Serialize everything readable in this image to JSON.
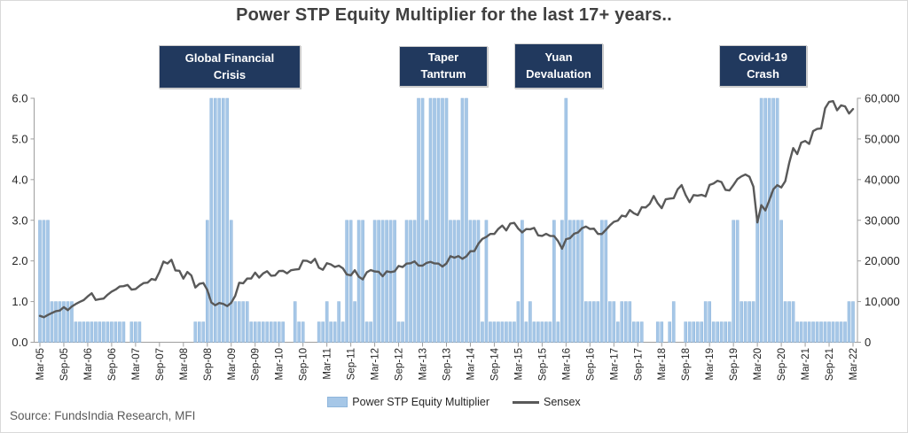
{
  "annotations": [
    {
      "line1": "Global Financial",
      "line2": "Crisis"
    },
    {
      "line1": "Taper",
      "line2": "Tantrum"
    },
    {
      "line1": "Yuan",
      "line2": "Devaluation"
    },
    {
      "line1": "Covid-19",
      "line2": "Crash"
    }
  ],
  "legend": {
    "items": [
      {
        "label": "Power STP Equity Multiplier",
        "type": "bar"
      },
      {
        "label": "Sensex",
        "type": "line"
      }
    ]
  },
  "footer": {
    "source": "Source: FundsIndia Research, MFI"
  },
  "chart_data": {
    "type": "bar+line",
    "title": "Power STP Equity Multiplier for the last 17+ years..",
    "x_start": "Mar-05",
    "x_end": "Mar-22",
    "x_freq": "monthly",
    "x_count": 205,
    "grid": false,
    "legend_position": "bottom-center",
    "x_tick_labels": [
      "Mar-05",
      "Sep-05",
      "Mar-06",
      "Sep-06",
      "Mar-07",
      "Sep-07",
      "Mar-08",
      "Sep-08",
      "Mar-09",
      "Sep-09",
      "Mar-10",
      "Sep-10",
      "Mar-11",
      "Sep-11",
      "Mar-12",
      "Sep-12",
      "Mar-13",
      "Sep-13",
      "Mar-14",
      "Sep-14",
      "Mar-15",
      "Sep-15",
      "Mar-16",
      "Sep-16",
      "Mar-17",
      "Sep-17",
      "Mar-18",
      "Sep-18",
      "Mar-19",
      "Sep-19",
      "Mar-20",
      "Sep-20",
      "Mar-21",
      "Sep-21",
      "Mar-22"
    ],
    "y_left": {
      "ticks": [
        "0.0",
        "1.0",
        "2.0",
        "3.0",
        "4.0",
        "5.0",
        "6.0"
      ],
      "lim": [
        0,
        6
      ]
    },
    "y_right": {
      "ticks": [
        "0",
        "10,000",
        "20,000",
        "30,000",
        "40,000",
        "50,000",
        "60,000"
      ],
      "lim": [
        0,
        60000
      ]
    },
    "series": [
      {
        "name": "Power STP Equity Multiplier",
        "type": "bar",
        "axis": "left",
        "color": "#A6C7E7",
        "edge_color": "#8FB6DC",
        "values": [
          3,
          3,
          3,
          1,
          1,
          1,
          1,
          1,
          1,
          0.5,
          0.5,
          0.5,
          0.5,
          0.5,
          0.5,
          0.5,
          0.5,
          0.5,
          0.5,
          0.5,
          0.5,
          0.5,
          0,
          0.5,
          0.5,
          0.5,
          0,
          0,
          0,
          0,
          0,
          0,
          0,
          0,
          0,
          0,
          0,
          0,
          0,
          0.5,
          0.5,
          0.5,
          3,
          6,
          6,
          6,
          6,
          6,
          3,
          1,
          1,
          1,
          1,
          0.5,
          0.5,
          0.5,
          0.5,
          0.5,
          0.5,
          0.5,
          0.5,
          0.5,
          0,
          0,
          1,
          0.5,
          0.5,
          0,
          0,
          0,
          0.5,
          0.5,
          1,
          0.5,
          0.5,
          1,
          0.5,
          3,
          3,
          1,
          3,
          3,
          0.5,
          0.5,
          3,
          3,
          3,
          3,
          3,
          3,
          0.5,
          0.5,
          3,
          3,
          3,
          6,
          6,
          3,
          6,
          6,
          6,
          6,
          6,
          3,
          3,
          3,
          6,
          6,
          3,
          3,
          3,
          0.5,
          3,
          0.5,
          0.5,
          0.5,
          0.5,
          0.5,
          0.5,
          0.5,
          1,
          3,
          0.5,
          1,
          0.5,
          0.5,
          0.5,
          0.5,
          0.5,
          3,
          0.5,
          3,
          6,
          3,
          3,
          3,
          3,
          1,
          1,
          1,
          1,
          3,
          3,
          1,
          1,
          0.5,
          1,
          1,
          1,
          0.5,
          0.5,
          0.5,
          0,
          0,
          0,
          0.5,
          0.5,
          0,
          0.5,
          1,
          0,
          0,
          0.5,
          0.5,
          0.5,
          0.5,
          0.5,
          1,
          1,
          0.5,
          0.5,
          0.5,
          0.5,
          0.5,
          3,
          3,
          1,
          1,
          1,
          1,
          3,
          6,
          6,
          6,
          6,
          6,
          3,
          1,
          1,
          1,
          0.5,
          0.5,
          0.5,
          0.5,
          0.5,
          0.5,
          0.5,
          0.5,
          0.5,
          0.5,
          0.5,
          0.5,
          0.5,
          1,
          1
        ]
      },
      {
        "name": "Sensex",
        "type": "line",
        "axis": "right",
        "color": "#595959",
        "values": [
          6493,
          6154,
          6715,
          7194,
          7635,
          7805,
          8634,
          7892,
          8789,
          9398,
          9920,
          10370,
          11280,
          12043,
          10399,
          10609,
          10744,
          11699,
          12454,
          12962,
          13696,
          13787,
          14091,
          12938,
          13072,
          13872,
          14544,
          14651,
          15551,
          15319,
          17291,
          19838,
          19363,
          20287,
          17649,
          17579,
          15644,
          17287,
          16416,
          13462,
          14356,
          14565,
          12860,
          9788,
          9093,
          9647,
          9424,
          8892,
          9709,
          11403,
          14625,
          14494,
          15670,
          15667,
          17127,
          15896,
          16926,
          17465,
          16358,
          16430,
          17528,
          17559,
          16945,
          17701,
          17868,
          17971,
          20069,
          20032,
          19521,
          20509,
          18328,
          17823,
          19445,
          19136,
          18503,
          18846,
          18197,
          16677,
          16454,
          17705,
          16123,
          15455,
          17194,
          17753,
          17404,
          17319,
          16219,
          17430,
          17236,
          17429,
          18763,
          18505,
          19340,
          19427,
          19895,
          18862,
          18836,
          19504,
          19760,
          19396,
          19346,
          18620,
          19380,
          21165,
          20792,
          21171,
          20514,
          21120,
          22386,
          22418,
          24217,
          25414,
          25895,
          26638,
          26631,
          27866,
          28694,
          27499,
          29183,
          29362,
          27957,
          27011,
          27828,
          27781,
          28115,
          26283,
          26155,
          26657,
          26146,
          26118,
          24871,
          23002,
          25342,
          25607,
          26668,
          26999,
          28052,
          28452,
          27866,
          27930,
          26653,
          26626,
          27656,
          28743,
          29621,
          29918,
          31146,
          30922,
          32515,
          31730,
          31284,
          33213,
          33149,
          34057,
          35965,
          34184,
          32969,
          35160,
          35322,
          35423,
          37607,
          38645,
          36227,
          34442,
          36194,
          36068,
          36257,
          35867,
          38673,
          39032,
          39714,
          39395,
          37481,
          37333,
          38667,
          40129,
          40794,
          41254,
          40723,
          38297,
          29468,
          33718,
          32424,
          34916,
          37607,
          38628,
          38068,
          39614,
          44150,
          47751,
          46286,
          49100,
          49509,
          48782,
          51937,
          52483,
          52587,
          57552,
          59126,
          59307,
          57065,
          58254,
          58014,
          56247,
          57362
        ]
      }
    ]
  }
}
